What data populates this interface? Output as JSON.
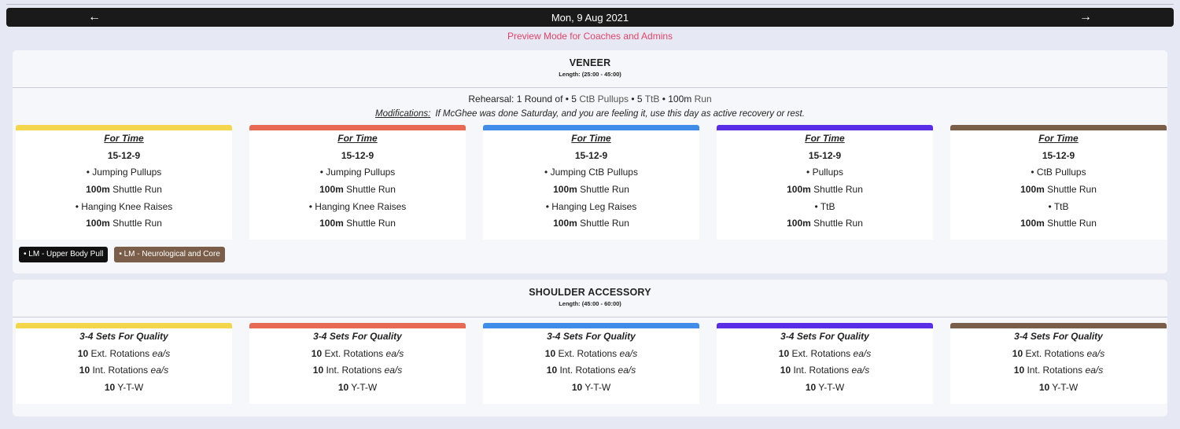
{
  "header": {
    "date": "Mon, 9 Aug 2021",
    "prev_icon": "←",
    "next_icon": "→",
    "preview_text": "Preview Mode for Coaches and Admins"
  },
  "colors": [
    "#f3d64b",
    "#e86a54",
    "#3f8de8",
    "#5a2ee6",
    "#7a5e49"
  ],
  "veneer": {
    "title": "VENEER",
    "length": "Length: (25:00 - 45:00)",
    "rehearsal": {
      "prefix": "Rehearsal: 1 Round of • 5 ",
      "ctb": "CtB Pullups",
      "mid": " • 5 ",
      "ttb": "TtB",
      "mid2": " • ",
      "dist": "100m",
      "run": " Run"
    },
    "mods_label": "Modifications:",
    "mods_text": "If McGhee was done Saturday, and you are feeling it, use this day as active recovery or rest.",
    "cards": [
      {
        "format": "For Time",
        "scheme": "15-12-9",
        "ex1": "• Jumping Pullups",
        "d1": "100m",
        "r1": " Shuttle Run",
        "ex2": "• Hanging Knee Raises",
        "d2": "100m",
        "r2": " Shuttle Run"
      },
      {
        "format": "For Time",
        "scheme": "15-12-9",
        "ex1": "• Jumping Pullups",
        "d1": "100m",
        "r1": " Shuttle Run",
        "ex2": "• Hanging Knee Raises",
        "d2": "100m",
        "r2": " Shuttle Run"
      },
      {
        "format": "For Time",
        "scheme": "15-12-9",
        "ex1": "• Jumping CtB Pullups",
        "d1": "100m",
        "r1": " Shuttle Run",
        "ex2": "• Hanging Leg Raises",
        "d2": "100m",
        "r2": " Shuttle Run"
      },
      {
        "format": "For Time",
        "scheme": "15-12-9",
        "ex1": "• Pullups",
        "d1": "100m",
        "r1": " Shuttle Run",
        "ex2": "• TtB",
        "d2": "100m",
        "r2": " Shuttle Run"
      },
      {
        "format": "For Time",
        "scheme": "15-12-9",
        "ex1": "• CtB Pullups",
        "d1": "100m",
        "r1": " Shuttle Run",
        "ex2": "• TtB",
        "d2": "100m",
        "r2": " Shuttle Run"
      }
    ],
    "tags": [
      "• LM - Upper Body Pull",
      "• LM - Neurological and Core"
    ]
  },
  "shoulder": {
    "title": "SHOULDER ACCESSORY",
    "length": "Length: (45:00 - 60:00)",
    "cards": [
      {
        "format": "3-4 Sets For Quality",
        "n1": "10",
        "e1": " Ext. Rotations ",
        "u1": "ea/s",
        "n2": "10",
        "e2": " Int. Rotations ",
        "u2": "ea/s",
        "n3": "10",
        "e3": " Y-T-W"
      },
      {
        "format": "3-4 Sets For Quality",
        "n1": "10",
        "e1": " Ext. Rotations ",
        "u1": "ea/s",
        "n2": "10",
        "e2": " Int. Rotations ",
        "u2": "ea/s",
        "n3": "10",
        "e3": " Y-T-W"
      },
      {
        "format": "3-4 Sets For Quality",
        "n1": "10",
        "e1": " Ext. Rotations ",
        "u1": "ea/s",
        "n2": "10",
        "e2": " Int. Rotations ",
        "u2": "ea/s",
        "n3": "10",
        "e3": " Y-T-W"
      },
      {
        "format": "3-4 Sets For Quality",
        "n1": "10",
        "e1": " Ext. Rotations ",
        "u1": "ea/s",
        "n2": "10",
        "e2": " Int. Rotations ",
        "u2": "ea/s",
        "n3": "10",
        "e3": " Y-T-W"
      },
      {
        "format": "3-4 Sets For Quality",
        "n1": "10",
        "e1": " Ext. Rotations ",
        "u1": "ea/s",
        "n2": "10",
        "e2": " Int. Rotations ",
        "u2": "ea/s",
        "n3": "10",
        "e3": " Y-T-W"
      }
    ]
  }
}
